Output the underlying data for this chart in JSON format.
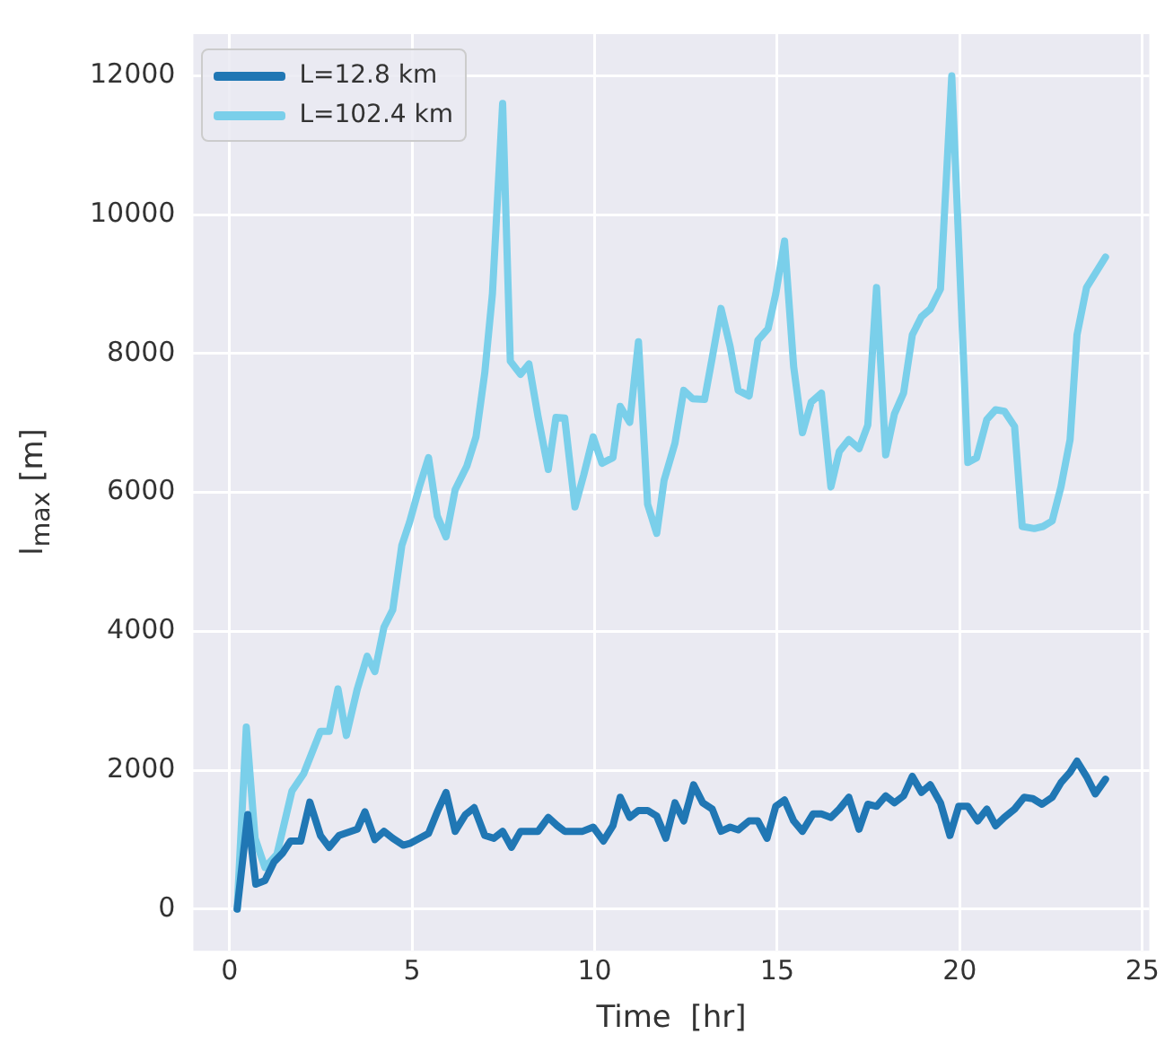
{
  "chart_data": {
    "type": "line",
    "xlabel": "Time  [hr]",
    "ylabel": "l$_{max}$  [m]",
    "xlim": [
      -0.99,
      25.19
    ],
    "ylim": [
      -600,
      12600
    ],
    "xticks": [
      0,
      5,
      10,
      15,
      20,
      25
    ],
    "yticks": [
      0,
      2000,
      4000,
      6000,
      8000,
      10000,
      12000
    ],
    "grid": true,
    "legend": "top left",
    "series": [
      {
        "name": "L=12.8 km",
        "color": "#2077b4",
        "x": [
          0.21,
          0.5,
          0.72,
          0.97,
          1.22,
          1.46,
          1.67,
          1.95,
          2.2,
          2.49,
          2.73,
          3.0,
          3.5,
          3.71,
          3.98,
          4.23,
          4.47,
          4.76,
          4.96,
          5.45,
          5.69,
          5.93,
          6.18,
          6.46,
          6.7,
          6.99,
          7.24,
          7.48,
          7.72,
          7.97,
          8.45,
          8.73,
          8.98,
          9.18,
          9.43,
          9.67,
          9.96,
          10.24,
          10.5,
          10.7,
          10.96,
          11.2,
          11.45,
          11.7,
          11.95,
          12.2,
          12.44,
          12.71,
          12.96,
          13.22,
          13.46,
          13.71,
          13.93,
          14.23,
          14.47,
          14.72,
          14.96,
          15.2,
          15.45,
          15.69,
          15.98,
          16.21,
          16.47,
          16.7,
          16.96,
          17.24,
          17.48,
          17.72,
          17.97,
          18.21,
          18.46,
          18.7,
          18.95,
          19.19,
          19.47,
          19.73,
          19.97,
          20.22,
          20.49,
          20.74,
          20.98,
          21.22,
          21.5,
          21.76,
          22.0,
          22.25,
          22.53,
          22.77,
          23.02,
          23.21,
          23.47,
          23.71,
          23.99
        ],
        "values": [
          0,
          1360,
          360,
          410,
          680,
          810,
          980,
          980,
          1540,
          1060,
          890,
          1060,
          1150,
          1400,
          1000,
          1120,
          1020,
          920,
          950,
          1090,
          1400,
          1680,
          1120,
          1360,
          1460,
          1060,
          1020,
          1120,
          890,
          1120,
          1120,
          1320,
          1200,
          1120,
          1120,
          1120,
          1180,
          980,
          1200,
          1610,
          1320,
          1420,
          1420,
          1340,
          1020,
          1530,
          1270,
          1790,
          1530,
          1440,
          1120,
          1180,
          1140,
          1270,
          1270,
          1020,
          1480,
          1570,
          1270,
          1120,
          1370,
          1370,
          1320,
          1440,
          1610,
          1150,
          1510,
          1480,
          1630,
          1530,
          1630,
          1910,
          1680,
          1790,
          1530,
          1060,
          1480,
          1480,
          1270,
          1440,
          1200,
          1320,
          1440,
          1610,
          1590,
          1510,
          1610,
          1820,
          1970,
          2130,
          1910,
          1660,
          1870
        ]
      },
      {
        "name": "L=102.4 km",
        "color": "#7acfea",
        "x": [
          0.21,
          0.46,
          0.7,
          0.97,
          1.3,
          1.71,
          2.03,
          2.49,
          2.73,
          2.97,
          3.2,
          3.5,
          3.77,
          3.98,
          4.23,
          4.47,
          4.72,
          4.93,
          5.2,
          5.45,
          5.69,
          5.93,
          6.18,
          6.5,
          6.75,
          6.99,
          7.2,
          7.48,
          7.69,
          7.97,
          8.2,
          8.45,
          8.73,
          8.94,
          9.18,
          9.46,
          9.7,
          9.96,
          10.2,
          10.5,
          10.7,
          10.96,
          11.2,
          11.45,
          11.7,
          11.9,
          12.2,
          12.44,
          12.68,
          13.01,
          13.22,
          13.46,
          13.71,
          13.93,
          14.23,
          14.47,
          14.75,
          14.96,
          15.2,
          15.45,
          15.69,
          15.93,
          16.21,
          16.47,
          16.7,
          16.96,
          17.24,
          17.48,
          17.72,
          17.97,
          18.21,
          18.46,
          18.7,
          18.95,
          19.19,
          19.47,
          19.78,
          20.22,
          20.46,
          20.74,
          20.98,
          21.22,
          21.5,
          21.71,
          22.04,
          22.28,
          22.53,
          22.77,
          23.02,
          23.21,
          23.47,
          23.99
        ],
        "values": [
          0,
          2620,
          1020,
          600,
          790,
          1700,
          1950,
          2560,
          2560,
          3170,
          2500,
          3170,
          3640,
          3420,
          4060,
          4310,
          5240,
          5570,
          6080,
          6500,
          5660,
          5360,
          6040,
          6380,
          6800,
          7720,
          8860,
          11600,
          7890,
          7700,
          7850,
          7090,
          6330,
          7080,
          7070,
          5790,
          6250,
          6800,
          6420,
          6500,
          7240,
          7010,
          8170,
          5830,
          5410,
          6170,
          6710,
          7470,
          7350,
          7340,
          7940,
          8650,
          8100,
          7470,
          7390,
          8190,
          8360,
          8860,
          9620,
          7810,
          6860,
          7300,
          7430,
          6080,
          6590,
          6760,
          6630,
          6970,
          8950,
          6540,
          7130,
          7430,
          8270,
          8530,
          8640,
          8930,
          12000,
          6430,
          6500,
          7050,
          7190,
          7170,
          6950,
          5510,
          5480,
          5510,
          5590,
          6080,
          6760,
          8270,
          8950,
          9390
        ]
      }
    ]
  }
}
